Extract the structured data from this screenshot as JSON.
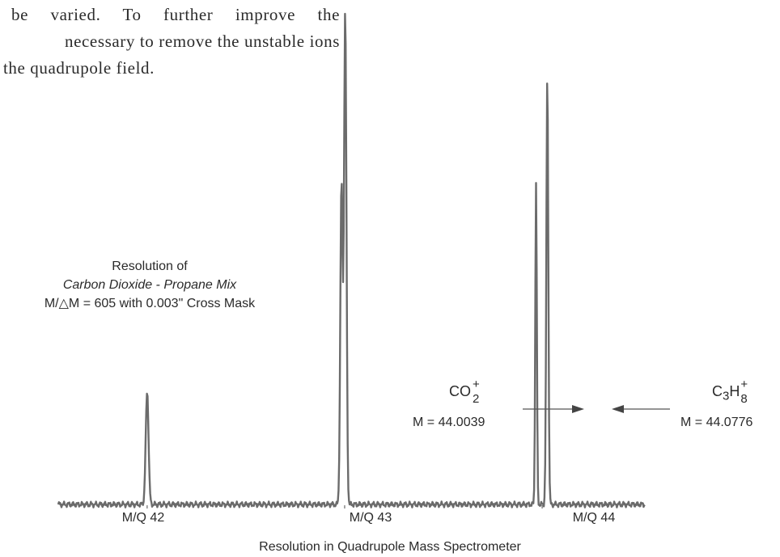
{
  "page_text": {
    "line1": "be varied. To further improve the",
    "line2": "necessary to remove the unstable ions",
    "line3": "the quadrupole field."
  },
  "chart_data": {
    "type": "line",
    "title": "Resolution in Quadrupole Mass Spectrometer",
    "annotation": {
      "line1": "Resolution of",
      "line2": "Carbon Dioxide - Propane Mix",
      "line3": "M/△M = 605 with 0.003\" Cross Mask"
    },
    "xlabel": "",
    "ylabel": "",
    "x_ticks": [
      {
        "value": 42,
        "label": "M/Q 42"
      },
      {
        "value": 43,
        "label": "M/Q 43"
      },
      {
        "value": 44,
        "label": "M/Q 44"
      }
    ],
    "xlim": [
      41.55,
      44.52
    ],
    "ylim": [
      0,
      100
    ],
    "grid": false,
    "peaks": [
      {
        "name": "M/Q 42",
        "center": 42.0,
        "height": 23,
        "width": 0.007
      },
      {
        "name": "M/Q 43 shoulder",
        "center": 42.984,
        "height": 65,
        "width": 0.006
      },
      {
        "name": "M/Q 43",
        "center": 43.003,
        "height": 100,
        "width": 0.006
      },
      {
        "name": "CO2+",
        "center": 43.969,
        "height": 65,
        "width": 0.004
      },
      {
        "name": "C3H8+",
        "center": 44.026,
        "height": 87,
        "width": 0.005
      }
    ],
    "species": [
      {
        "formula_base": "CO",
        "formula_sub": "2",
        "charge": "+",
        "mass": "M = 44.0039"
      },
      {
        "formula_base": "C",
        "formula_sub1": "3",
        "formula_mid": "H",
        "formula_sub2": "8",
        "charge": "+",
        "mass": "M = 44.0776"
      }
    ],
    "line_color": "#6b6b6b"
  }
}
